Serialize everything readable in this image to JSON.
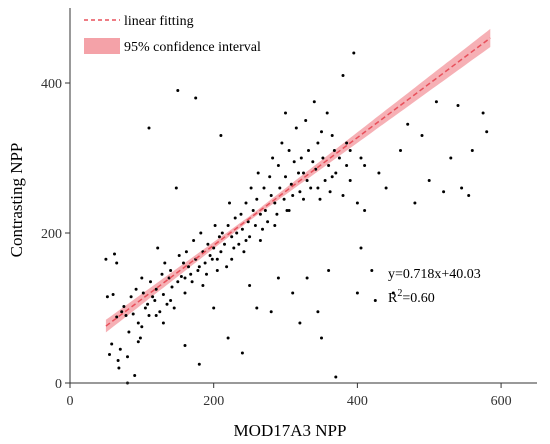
{
  "chart_data": {
    "type": "scatter",
    "xlabel": "MOD17A3 NPP",
    "ylabel": "Contrasting NPP",
    "xlim": [
      0,
      650
    ],
    "ylim": [
      0,
      500
    ],
    "xticks": [
      0,
      200,
      400,
      600
    ],
    "yticks": [
      0,
      200,
      400
    ],
    "grid": false,
    "legend_position": "top-left",
    "legend": {
      "fit_label": "linear fitting",
      "ci_label": "95% confidence interval"
    },
    "annotation": {
      "equation": "y=0.718x+40.03",
      "r2_prefix": "R",
      "r2_sup": "2",
      "r2_value": "=0.60"
    },
    "fit_line": {
      "slope": 0.718,
      "intercept": 40.03,
      "x_start": 50,
      "x_end": 585
    },
    "confidence_band": {
      "mean_x": 250,
      "half_width_at_mean": 3,
      "half_width_growth": 0.027
    },
    "colors": {
      "points": "#000000",
      "fit_line": "#e8505b",
      "band": "#f4a2a8",
      "axis": "#333333"
    },
    "points": [
      [
        50,
        165
      ],
      [
        52,
        115
      ],
      [
        55,
        38
      ],
      [
        58,
        52
      ],
      [
        60,
        118
      ],
      [
        62,
        172
      ],
      [
        65,
        88
      ],
      [
        67,
        30
      ],
      [
        68,
        20
      ],
      [
        70,
        45
      ],
      [
        72,
        95
      ],
      [
        75,
        102
      ],
      [
        78,
        90
      ],
      [
        80,
        35
      ],
      [
        82,
        68
      ],
      [
        85,
        115
      ],
      [
        88,
        92
      ],
      [
        90,
        10
      ],
      [
        92,
        125
      ],
      [
        95,
        80
      ],
      [
        98,
        60
      ],
      [
        100,
        140
      ],
      [
        102,
        120
      ],
      [
        105,
        100
      ],
      [
        108,
        105
      ],
      [
        110,
        90
      ],
      [
        112,
        135
      ],
      [
        115,
        115
      ],
      [
        118,
        110
      ],
      [
        120,
        125
      ],
      [
        122,
        180
      ],
      [
        125,
        95
      ],
      [
        128,
        145
      ],
      [
        130,
        118
      ],
      [
        132,
        160
      ],
      [
        135,
        105
      ],
      [
        138,
        140
      ],
      [
        140,
        150
      ],
      [
        142,
        128
      ],
      [
        145,
        100
      ],
      [
        148,
        260
      ],
      [
        150,
        135
      ],
      [
        152,
        170
      ],
      [
        155,
        142
      ],
      [
        158,
        160
      ],
      [
        160,
        120
      ],
      [
        162,
        175
      ],
      [
        165,
        155
      ],
      [
        168,
        145
      ],
      [
        170,
        135
      ],
      [
        172,
        190
      ],
      [
        175,
        165
      ],
      [
        178,
        150
      ],
      [
        180,
        155
      ],
      [
        182,
        200
      ],
      [
        185,
        175
      ],
      [
        188,
        160
      ],
      [
        190,
        145
      ],
      [
        192,
        185
      ],
      [
        195,
        170
      ],
      [
        198,
        165
      ],
      [
        200,
        180
      ],
      [
        202,
        210
      ],
      [
        205,
        150
      ],
      [
        208,
        195
      ],
      [
        210,
        175
      ],
      [
        212,
        200
      ],
      [
        215,
        185
      ],
      [
        218,
        155
      ],
      [
        220,
        210
      ],
      [
        222,
        240
      ],
      [
        225,
        195
      ],
      [
        228,
        180
      ],
      [
        230,
        220
      ],
      [
        232,
        200
      ],
      [
        235,
        185
      ],
      [
        238,
        225
      ],
      [
        240,
        205
      ],
      [
        242,
        175
      ],
      [
        245,
        240
      ],
      [
        248,
        215
      ],
      [
        250,
        195
      ],
      [
        252,
        260
      ],
      [
        255,
        230
      ],
      [
        258,
        210
      ],
      [
        260,
        245
      ],
      [
        262,
        280
      ],
      [
        265,
        225
      ],
      [
        268,
        205
      ],
      [
        270,
        260
      ],
      [
        272,
        230
      ],
      [
        275,
        215
      ],
      [
        278,
        275
      ],
      [
        280,
        250
      ],
      [
        282,
        300
      ],
      [
        285,
        240
      ],
      [
        288,
        225
      ],
      [
        290,
        290
      ],
      [
        292,
        260
      ],
      [
        295,
        320
      ],
      [
        298,
        245
      ],
      [
        300,
        275
      ],
      [
        302,
        230
      ],
      [
        305,
        310
      ],
      [
        308,
        265
      ],
      [
        310,
        250
      ],
      [
        312,
        295
      ],
      [
        315,
        340
      ],
      [
        318,
        280
      ],
      [
        320,
        255
      ],
      [
        322,
        300
      ],
      [
        325,
        280
      ],
      [
        328,
        350
      ],
      [
        330,
        270
      ],
      [
        332,
        310
      ],
      [
        335,
        260
      ],
      [
        338,
        295
      ],
      [
        340,
        375
      ],
      [
        342,
        285
      ],
      [
        345,
        320
      ],
      [
        348,
        245
      ],
      [
        350,
        335
      ],
      [
        352,
        300
      ],
      [
        355,
        270
      ],
      [
        358,
        360
      ],
      [
        360,
        290
      ],
      [
        362,
        255
      ],
      [
        365,
        330
      ],
      [
        368,
        310
      ],
      [
        370,
        280
      ],
      [
        375,
        300
      ],
      [
        380,
        250
      ],
      [
        385,
        320
      ],
      [
        390,
        270
      ],
      [
        395,
        440
      ],
      [
        400,
        240
      ],
      [
        405,
        180
      ],
      [
        410,
        230
      ],
      [
        420,
        150
      ],
      [
        440,
        260
      ],
      [
        460,
        310
      ],
      [
        480,
        240
      ],
      [
        500,
        270
      ],
      [
        520,
        255
      ],
      [
        540,
        370
      ],
      [
        560,
        310
      ],
      [
        580,
        335
      ],
      [
        65,
        160
      ],
      [
        80,
        0
      ],
      [
        95,
        55
      ],
      [
        110,
        340
      ],
      [
        130,
        80
      ],
      [
        150,
        390
      ],
      [
        160,
        50
      ],
      [
        175,
        380
      ],
      [
        180,
        25
      ],
      [
        200,
        100
      ],
      [
        210,
        330
      ],
      [
        220,
        60
      ],
      [
        240,
        40
      ],
      [
        250,
        130
      ],
      [
        260,
        100
      ],
      [
        280,
        95
      ],
      [
        290,
        140
      ],
      [
        300,
        360
      ],
      [
        310,
        120
      ],
      [
        320,
        80
      ],
      [
        330,
        140
      ],
      [
        345,
        95
      ],
      [
        350,
        60
      ],
      [
        360,
        150
      ],
      [
        370,
        8
      ],
      [
        380,
        410
      ],
      [
        390,
        310
      ],
      [
        400,
        120
      ],
      [
        410,
        290
      ],
      [
        425,
        110
      ],
      [
        430,
        280
      ],
      [
        450,
        120
      ],
      [
        470,
        345
      ],
      [
        490,
        330
      ],
      [
        510,
        375
      ],
      [
        530,
        300
      ],
      [
        545,
        260
      ],
      [
        555,
        250
      ],
      [
        575,
        360
      ],
      [
        100,
        75
      ],
      [
        120,
        90
      ],
      [
        140,
        110
      ],
      [
        160,
        140
      ],
      [
        185,
        130
      ],
      [
        205,
        165
      ],
      [
        225,
        165
      ],
      [
        245,
        190
      ],
      [
        265,
        190
      ],
      [
        285,
        210
      ],
      [
        305,
        230
      ],
      [
        325,
        245
      ],
      [
        345,
        260
      ],
      [
        365,
        275
      ],
      [
        385,
        290
      ],
      [
        405,
        300
      ]
    ]
  }
}
